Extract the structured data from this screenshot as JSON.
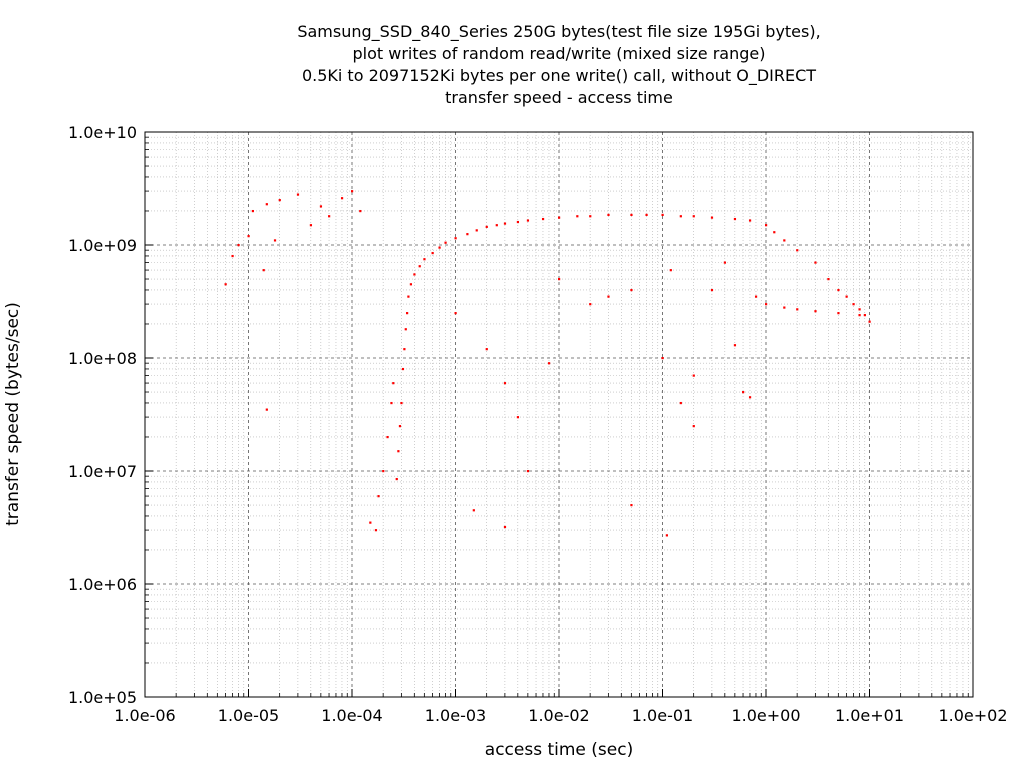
{
  "chart_data": {
    "type": "scatter",
    "title_lines": [
      "Samsung_SSD_840_Series 250G bytes(test file size 195Gi bytes),",
      "plot writes of random read/write (mixed size range)",
      "0.5Ki to 2097152Ki bytes per one write() call, without O_DIRECT",
      "transfer speed - access time"
    ],
    "xlabel": "access time (sec)",
    "ylabel": "transfer speed (bytes/sec)",
    "xscale": "log",
    "yscale": "log",
    "xlim": [
      1e-06,
      100
    ],
    "ylim": [
      100000.0,
      10000000000.0
    ],
    "x_ticks": [
      {
        "value": 1e-06,
        "label": "1.0e-06"
      },
      {
        "value": 1e-05,
        "label": "1.0e-05"
      },
      {
        "value": 0.0001,
        "label": "1.0e-04"
      },
      {
        "value": 0.001,
        "label": "1.0e-03"
      },
      {
        "value": 0.01,
        "label": "1.0e-02"
      },
      {
        "value": 0.1,
        "label": "1.0e-01"
      },
      {
        "value": 1,
        "label": "1.0e+00"
      },
      {
        "value": 10,
        "label": "1.0e+01"
      },
      {
        "value": 100,
        "label": "1.0e+02"
      }
    ],
    "y_ticks": [
      {
        "value": 100000.0,
        "label": "1.0e+05"
      },
      {
        "value": 1000000.0,
        "label": "1.0e+06"
      },
      {
        "value": 10000000.0,
        "label": "1.0e+07"
      },
      {
        "value": 100000000.0,
        "label": "1.0e+08"
      },
      {
        "value": 1000000000.0,
        "label": "1.0e+09"
      },
      {
        "value": 10000000000.0,
        "label": "1.0e+10"
      }
    ],
    "grid": true,
    "legend": "none",
    "series": [
      {
        "color": "#ff0000",
        "marker": "dot",
        "points": [
          [
            7e-06,
            800000000.0
          ],
          [
            8e-06,
            1000000000.0
          ],
          [
            1e-05,
            1200000000.0
          ],
          [
            1.1e-05,
            2000000000.0
          ],
          [
            1.5e-05,
            2300000000.0
          ],
          [
            1.8e-05,
            1100000000.0
          ],
          [
            2e-05,
            2500000000.0
          ],
          [
            3e-05,
            2800000000.0
          ],
          [
            4e-05,
            1500000000.0
          ],
          [
            5e-05,
            2200000000.0
          ],
          [
            6e-05,
            1800000000.0
          ],
          [
            8e-05,
            2600000000.0
          ],
          [
            0.0001,
            3000000000.0
          ],
          [
            0.00012,
            2000000000.0
          ],
          [
            1.5e-05,
            35000000.0
          ],
          [
            6e-06,
            450000000.0
          ],
          [
            1.4e-05,
            600000000.0
          ],
          [
            0.00015,
            3500000.0
          ],
          [
            0.00017,
            3000000.0
          ],
          [
            0.00018,
            6000000.0
          ],
          [
            0.0002,
            10000000.0
          ],
          [
            0.00022,
            20000000.0
          ],
          [
            0.00024,
            40000000.0
          ],
          [
            0.00025,
            60000000.0
          ],
          [
            0.00027,
            8500000.0
          ],
          [
            0.00028,
            15000000.0
          ],
          [
            0.00029,
            25000000.0
          ],
          [
            0.0003,
            40000000.0
          ],
          [
            0.00031,
            80000000.0
          ],
          [
            0.00032,
            120000000.0
          ],
          [
            0.00033,
            180000000.0
          ],
          [
            0.00034,
            250000000.0
          ],
          [
            0.00035,
            350000000.0
          ],
          [
            0.00037,
            450000000.0
          ],
          [
            0.0004,
            550000000.0
          ],
          [
            0.00045,
            650000000.0
          ],
          [
            0.0005,
            750000000.0
          ],
          [
            0.0006,
            850000000.0
          ],
          [
            0.0007,
            950000000.0
          ],
          [
            0.0008,
            1050000000.0
          ],
          [
            0.001,
            1150000000.0
          ],
          [
            0.0013,
            1250000000.0
          ],
          [
            0.0016,
            1350000000.0
          ],
          [
            0.002,
            1450000000.0
          ],
          [
            0.0025,
            1500000000.0
          ],
          [
            0.003,
            1550000000.0
          ],
          [
            0.004,
            1600000000.0
          ],
          [
            0.005,
            1650000000.0
          ],
          [
            0.007,
            1700000000.0
          ],
          [
            0.01,
            1750000000.0
          ],
          [
            0.015,
            1800000000.0
          ],
          [
            0.02,
            1800000000.0
          ],
          [
            0.03,
            1850000000.0
          ],
          [
            0.05,
            1850000000.0
          ],
          [
            0.07,
            1850000000.0
          ],
          [
            0.1,
            1850000000.0
          ],
          [
            0.15,
            1800000000.0
          ],
          [
            0.2,
            1800000000.0
          ],
          [
            0.3,
            1750000000.0
          ],
          [
            0.5,
            1700000000.0
          ],
          [
            0.7,
            1650000000.0
          ],
          [
            1,
            1500000000.0
          ],
          [
            1.2,
            1300000000.0
          ],
          [
            1.5,
            1100000000.0
          ],
          [
            2,
            900000000.0
          ],
          [
            3,
            700000000.0
          ],
          [
            4,
            500000000.0
          ],
          [
            5,
            400000000.0
          ],
          [
            6,
            350000000.0
          ],
          [
            7,
            300000000.0
          ],
          [
            8,
            270000000.0
          ],
          [
            9,
            240000000.0
          ],
          [
            10,
            210000000.0
          ],
          [
            0.001,
            250000000.0
          ],
          [
            0.002,
            120000000.0
          ],
          [
            0.003,
            60000000.0
          ],
          [
            0.004,
            30000000.0
          ],
          [
            0.005,
            10000000.0
          ],
          [
            0.01,
            500000000.0
          ],
          [
            0.02,
            300000000.0
          ],
          [
            0.05,
            400000000.0
          ],
          [
            0.1,
            100000000.0
          ],
          [
            0.12,
            600000000.0
          ],
          [
            0.2,
            25000000.0
          ],
          [
            0.3,
            400000000.0
          ],
          [
            0.4,
            700000000.0
          ],
          [
            0.6,
            50000000.0
          ],
          [
            0.8,
            350000000.0
          ],
          [
            1,
            300000000.0
          ],
          [
            1.5,
            280000000.0
          ],
          [
            2,
            270000000.0
          ],
          [
            3,
            260000000.0
          ],
          [
            5,
            250000000.0
          ],
          [
            8,
            240000000.0
          ],
          [
            0.0015,
            4500000.0
          ],
          [
            0.003,
            3200000.0
          ],
          [
            0.05,
            5000000.0
          ],
          [
            0.11,
            2700000.0
          ],
          [
            0.7,
            45000000.0
          ],
          [
            0.2,
            70000000.0
          ],
          [
            0.5,
            130000000.0
          ],
          [
            0.15,
            40000000.0
          ],
          [
            0.03,
            350000000.0
          ],
          [
            0.008,
            90000000.0
          ]
        ]
      }
    ]
  }
}
